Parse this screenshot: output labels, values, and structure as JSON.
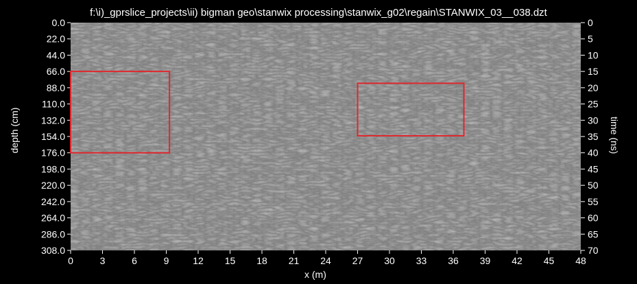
{
  "chart_data": {
    "type": "heatmap",
    "title": "f:\\i)_gprslice_projects\\ii) bigman geo\\stanwix processing\\stanwix_g02\\regain\\STANWIX_03__038.dzt",
    "xlabel": "x (m)",
    "ylabel": "depth (cm)",
    "ylabel_right": "time (ns)",
    "xlim": [
      0,
      48
    ],
    "ylim": [
      0,
      308
    ],
    "ylim_right": [
      0,
      70
    ],
    "x_ticks": [
      "0",
      "3",
      "6",
      "9",
      "12",
      "15",
      "18",
      "21",
      "24",
      "27",
      "30",
      "33",
      "36",
      "39",
      "42",
      "45",
      "48"
    ],
    "y_ticks": [
      "0.0",
      "22.0",
      "44.0",
      "66.0",
      "88.0",
      "110.0",
      "132.0",
      "154.0",
      "176.0",
      "198.0",
      "220.0",
      "242.0",
      "264.0",
      "286.0",
      "308.0"
    ],
    "y_ticks_right": [
      "0",
      "5",
      "10",
      "15",
      "20",
      "25",
      "30",
      "35",
      "40",
      "45",
      "50",
      "55",
      "60",
      "65",
      "70"
    ],
    "colormap": "grayscale",
    "highlights": [
      {
        "x": [
          0,
          9.3
        ],
        "y": [
          66,
          176
        ],
        "color": "#e0262c"
      },
      {
        "x": [
          27,
          37
        ],
        "y": [
          82,
          153
        ],
        "color": "#e0262c"
      }
    ]
  }
}
